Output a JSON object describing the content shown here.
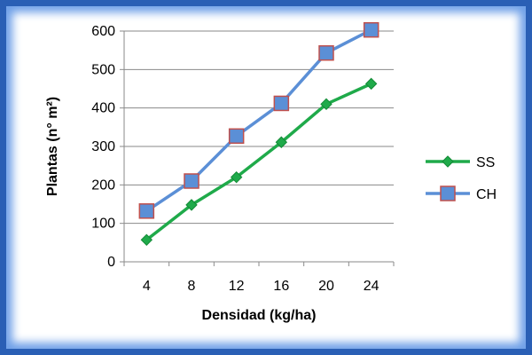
{
  "chart_data": {
    "type": "line",
    "xlabel": "Densidad (kg/ha)",
    "ylabel": "Plantas (n° m²)",
    "categories": [
      "4",
      "8",
      "12",
      "16",
      "20",
      "24"
    ],
    "ylim": [
      0,
      600
    ],
    "yticks": [
      0,
      100,
      200,
      300,
      400,
      500,
      600
    ],
    "grid": "horizontal",
    "legend_position": "right",
    "series": [
      {
        "name": "SS",
        "values": [
          57,
          148,
          220,
          311,
          410,
          463
        ],
        "color": "#1faa4a",
        "marker": "diamond"
      },
      {
        "name": "CH",
        "values": [
          132,
          210,
          327,
          412,
          543,
          603
        ],
        "color": "#5b8fd6",
        "marker": "square"
      }
    ]
  }
}
